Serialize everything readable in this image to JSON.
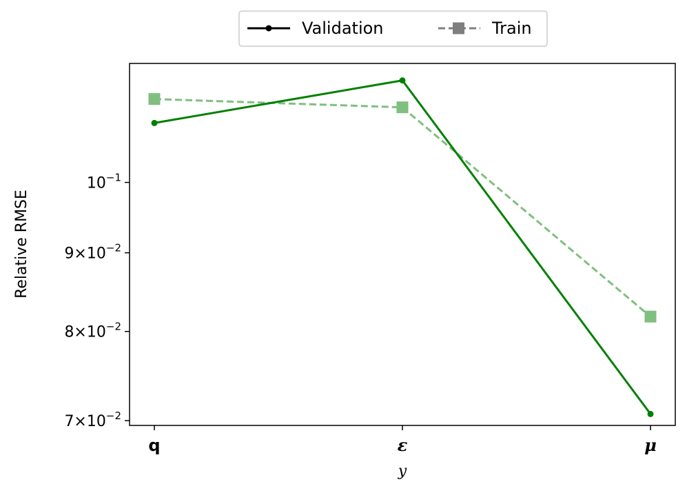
{
  "chart_data": {
    "type": "line",
    "categories": [
      "q",
      "ε",
      "μ"
    ],
    "xlabel": "y",
    "ylabel": "Relative RMSE",
    "yscale": "log",
    "ylim": [
      0.0695,
      0.1195
    ],
    "yticks": [
      {
        "value": 0.07,
        "mantissa": "7",
        "exp": "−2"
      },
      {
        "value": 0.08,
        "mantissa": "8",
        "exp": "−2"
      },
      {
        "value": 0.09,
        "mantissa": "9",
        "exp": "−2"
      },
      {
        "value": 0.1,
        "mantissa": "10",
        "exp": "−1"
      }
    ],
    "legend_position": "top-center",
    "grid": false,
    "series": [
      {
        "name": "Validation",
        "values": [
          0.1093,
          0.1165,
          0.0707
        ],
        "color": "#008000",
        "style": "solid",
        "marker": "circle"
      },
      {
        "name": "Train",
        "values": [
          0.1133,
          0.1119,
          0.0818
        ],
        "color": "#7fbf7f",
        "style": "dashed",
        "marker": "square"
      }
    ],
    "legend_colors": {
      "Validation": "#000000",
      "Train": "#7f7f7f"
    }
  }
}
